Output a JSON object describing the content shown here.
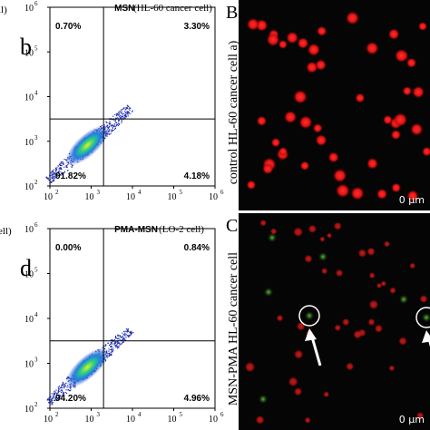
{
  "panels": [
    {
      "fragment": "ll)",
      "letter": "b",
      "title": "MSN",
      "subtitle": "(HL-60 cancer cell)",
      "quadrants": [
        "0.70%",
        "3.30%",
        "91.82%",
        "4.18%"
      ],
      "yticks": [
        {
          "base": "10",
          "exp": "6"
        },
        {
          "base": "10",
          "exp": "5"
        },
        {
          "base": "10",
          "exp": "4"
        },
        {
          "base": "10",
          "exp": "3"
        },
        {
          "base": "10",
          "exp": "2"
        }
      ],
      "xticks": [
        {
          "base": "10",
          "exp": "2"
        },
        {
          "base": "10",
          "exp": "3"
        },
        {
          "base": "10",
          "exp": "4"
        },
        {
          "base": "10",
          "exp": "5"
        },
        {
          "base": "10",
          "exp": "6"
        }
      ]
    },
    {
      "fragment": "ell)",
      "letter": "d",
      "title": "PMA-MSN",
      "subtitle": "(LO-2 cell)",
      "quadrants": [
        "0.00%",
        "0.84%",
        "94.20%",
        "4.96%"
      ],
      "yticks": [
        {
          "base": "10",
          "exp": "6"
        },
        {
          "base": "10",
          "exp": "5"
        },
        {
          "base": "10",
          "exp": "4"
        },
        {
          "base": "10",
          "exp": "3"
        },
        {
          "base": "10",
          "exp": "2"
        }
      ],
      "xticks": [
        {
          "base": "10",
          "exp": "2"
        },
        {
          "base": "10",
          "exp": "3"
        },
        {
          "base": "10",
          "exp": "4"
        },
        {
          "base": "10",
          "exp": "5"
        },
        {
          "base": "10",
          "exp": "6"
        }
      ]
    }
  ],
  "images": [
    {
      "letter": "B",
      "label": "control HL-60 cancer cell a)",
      "scale": "0   μm"
    },
    {
      "letter": "C",
      "label": "MSN-PMA HL-60 cancer cell",
      "scale": "0   μm"
    }
  ]
}
